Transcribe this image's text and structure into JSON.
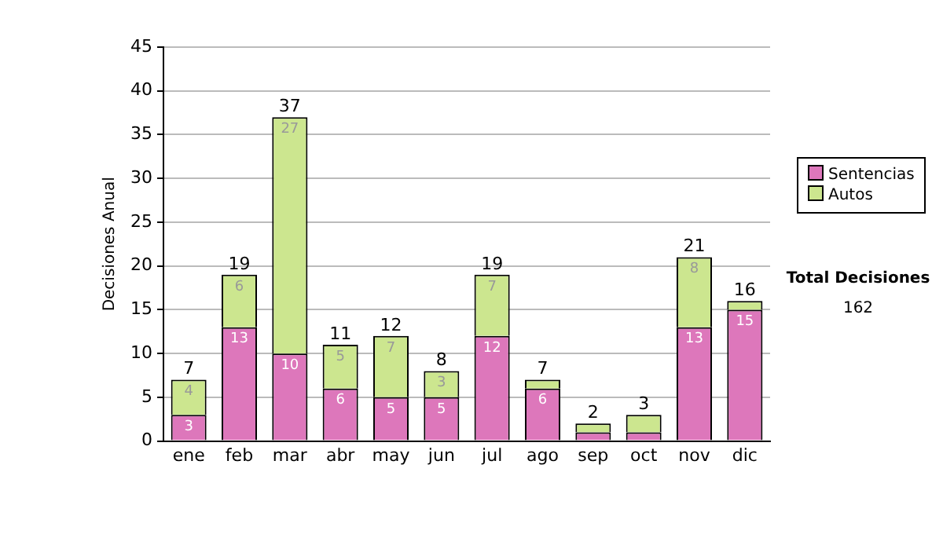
{
  "chart_data": {
    "type": "bar",
    "stacked": true,
    "ylabel": "Decisiones Anual",
    "categories": [
      "ene",
      "feb",
      "mar",
      "abr",
      "may",
      "jun",
      "jul",
      "ago",
      "sep",
      "oct",
      "nov",
      "dic"
    ],
    "series": [
      {
        "name": "Sentencias",
        "color": "#dd77bb",
        "values": [
          3,
          13,
          10,
          6,
          5,
          5,
          12,
          6,
          1,
          1,
          13,
          15
        ],
        "value_labels": [
          "3",
          "13",
          "10",
          "6",
          "5",
          "5",
          "12",
          "6",
          null,
          null,
          "13",
          "15"
        ]
      },
      {
        "name": "Autos",
        "color": "#cce68f",
        "values": [
          4,
          6,
          27,
          5,
          7,
          3,
          7,
          1,
          1,
          2,
          8,
          1
        ],
        "value_labels": [
          "4",
          "6",
          "27",
          "5",
          "7",
          "3",
          "7",
          null,
          null,
          null,
          "8",
          null
        ]
      }
    ],
    "totals": [
      "7",
      "19",
      "37",
      "11",
      "12",
      "8",
      "19",
      "7",
      "2",
      "3",
      "21",
      "16"
    ],
    "ylim": [
      0,
      45
    ],
    "yticks": [
      0,
      5,
      10,
      15,
      20,
      25,
      30,
      35,
      40,
      45
    ],
    "grid": "y",
    "legend": "right",
    "annotations": [
      "Total Decisiones",
      "162"
    ]
  }
}
